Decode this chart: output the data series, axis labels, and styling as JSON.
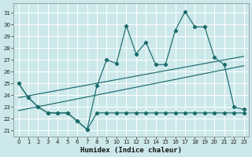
{
  "xlabel": "Humidex (Indice chaleur)",
  "bg_color": "#cce8ea",
  "grid_color": "#ffffff",
  "line_color": "#1a6b6b",
  "x_ticks": [
    0,
    1,
    2,
    3,
    4,
    5,
    6,
    7,
    8,
    9,
    10,
    11,
    12,
    13,
    14,
    15,
    16,
    17,
    18,
    19,
    20,
    21,
    22,
    23
  ],
  "y_ticks": [
    21,
    22,
    23,
    24,
    25,
    26,
    27,
    28,
    29,
    30,
    31
  ],
  "ylim": [
    20.5,
    31.8
  ],
  "xlim": [
    -0.5,
    23.5
  ],
  "series_main": [
    25.0,
    23.8,
    23.0,
    22.5,
    22.5,
    22.5,
    21.8,
    21.1,
    24.8,
    27.0,
    26.7,
    29.9,
    27.5,
    28.5,
    26.6,
    26.6,
    29.5,
    31.1,
    29.8,
    29.8,
    27.2,
    26.6,
    23.0,
    22.8
  ],
  "series_low": [
    25.0,
    23.8,
    23.0,
    22.5,
    22.5,
    22.5,
    21.8,
    21.1,
    22.5,
    22.5,
    22.5,
    22.5,
    22.5,
    22.5,
    22.5,
    22.5,
    22.5,
    22.5,
    22.5,
    22.5,
    22.5,
    22.5,
    22.5,
    22.5
  ],
  "trend1_x": [
    0,
    23
  ],
  "trend1_y": [
    23.8,
    27.3
  ],
  "trend2_x": [
    0,
    23
  ],
  "trend2_y": [
    22.7,
    26.5
  ]
}
